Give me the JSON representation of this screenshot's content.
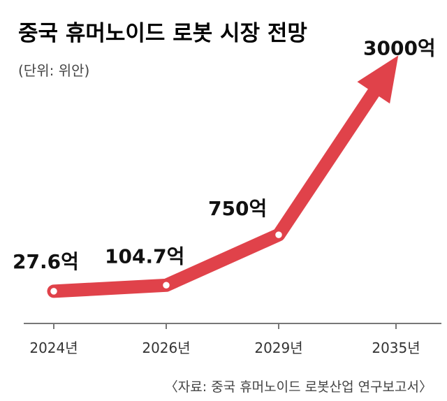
{
  "title": "중국 휴머노이드 로봇 시장 전망",
  "unit_label": "(단위: 위안)",
  "source": "〈자료: 중국 휴머노이드 로봇산업 연구보고서〉",
  "colors": {
    "line": "#e0424a",
    "marker_fill": "#ffffff",
    "text": "#111111",
    "axis": "#777777"
  },
  "chart_data": {
    "type": "line",
    "categories": [
      "2024년",
      "2026년",
      "2029년",
      "2035년"
    ],
    "series": [
      {
        "values": [
          27.6,
          104.7,
          750,
          3000
        ],
        "labels": [
          "27.6억",
          "104.7억",
          "750억",
          "3000억"
        ]
      }
    ],
    "ylabel": "",
    "grid": false,
    "legend": "none",
    "final_point_arrow": true
  }
}
